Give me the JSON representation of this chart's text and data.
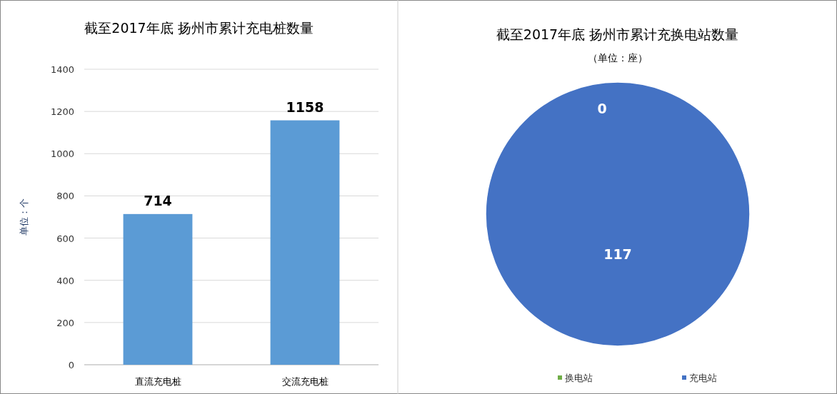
{
  "chart_data": [
    {
      "type": "bar",
      "title": "截至2017年底 扬州市累计充电桩数量",
      "ylabel": "单位：个",
      "categories": [
        "直流充电桩",
        "交流充电桩"
      ],
      "values": [
        714,
        1158
      ],
      "color": "#5b9bd5",
      "ylim": [
        0,
        1400
      ],
      "yticks": [
        0,
        200,
        400,
        600,
        800,
        1000,
        1200,
        1400
      ],
      "grid": "y",
      "data_labels": true
    },
    {
      "type": "pie",
      "title": "截至2017年底 扬州市累计充换电站数量",
      "subtitle": "（单位：座）",
      "categories": [
        "换电站",
        "充电站"
      ],
      "values": [
        0,
        117
      ],
      "colors": [
        "#70ad47",
        "#4472c4"
      ],
      "value_labels": [
        "0",
        "117"
      ],
      "legend": "bottom"
    }
  ]
}
